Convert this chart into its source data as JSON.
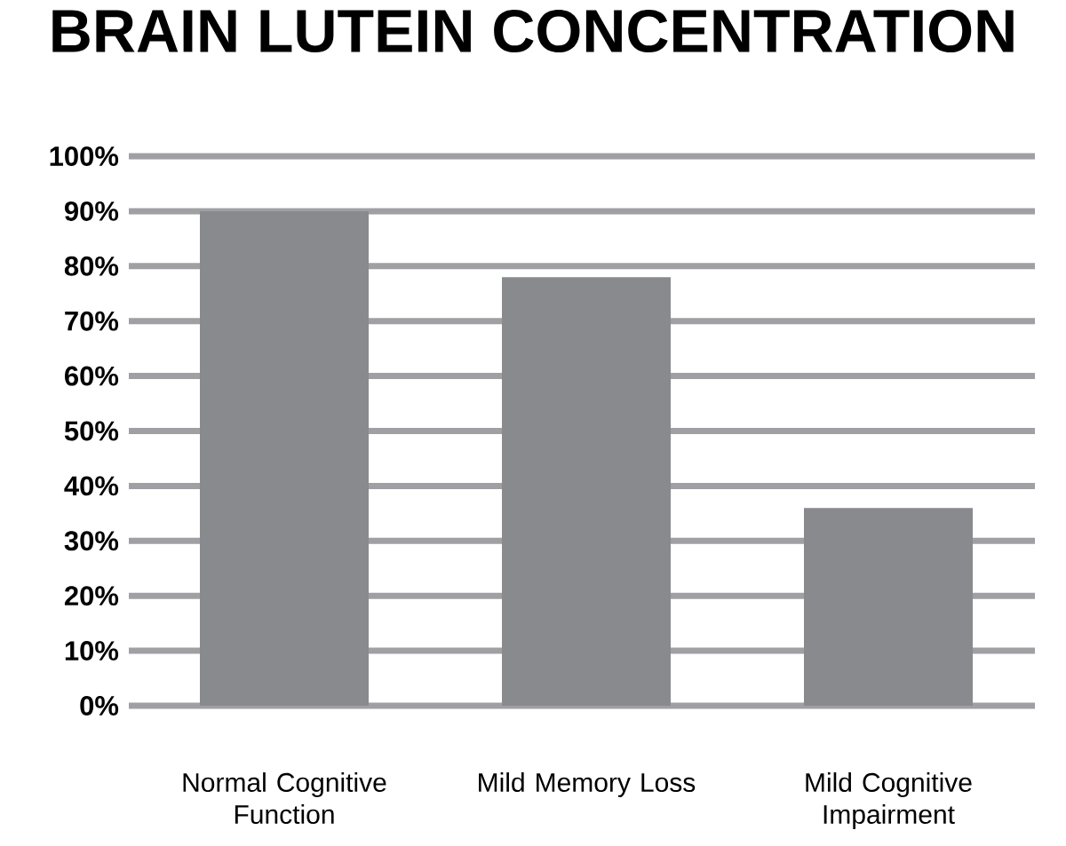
{
  "chart_data": {
    "type": "bar",
    "title": "BRAIN LUTEIN CONCENTRATION",
    "categories": [
      "Normal Cognitive Function",
      "Mild Memory Loss",
      "Mild Cognitive Impairment"
    ],
    "values": [
      90,
      78,
      36
    ],
    "color": "#898a8e",
    "ylim": [
      0,
      100
    ],
    "yticks": [
      {
        "value": 0,
        "label": "0%"
      },
      {
        "value": 10,
        "label": "10%"
      },
      {
        "value": 20,
        "label": "20%"
      },
      {
        "value": 30,
        "label": "30%"
      },
      {
        "value": 40,
        "label": "40%"
      },
      {
        "value": 50,
        "label": "50%"
      },
      {
        "value": 60,
        "label": "60%"
      },
      {
        "value": 70,
        "label": "70%"
      },
      {
        "value": 80,
        "label": "80%"
      },
      {
        "value": 90,
        "label": "90%"
      },
      {
        "value": 100,
        "label": "100%"
      }
    ],
    "grid": "y"
  }
}
